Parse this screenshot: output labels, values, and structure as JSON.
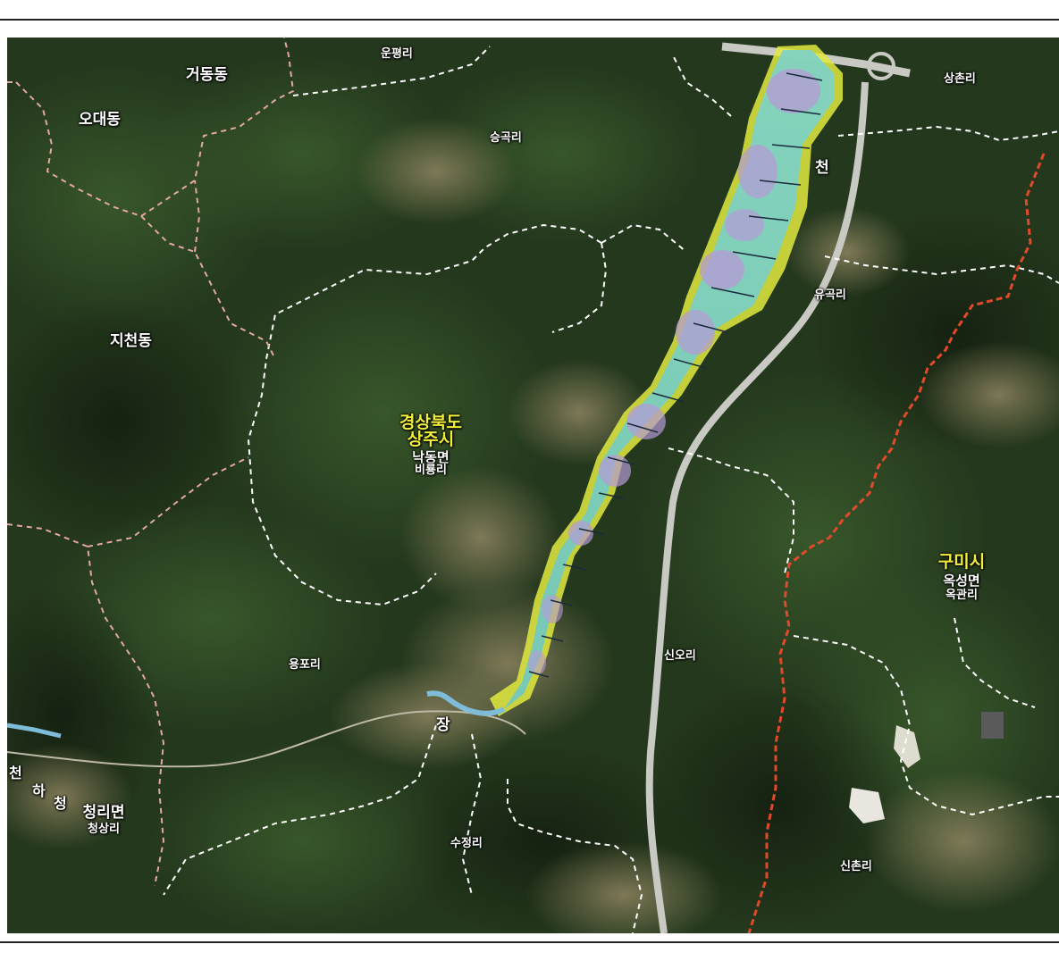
{
  "labels": {
    "geodong": "거동동",
    "odae": "오대동",
    "unpyeong": "운평리",
    "seunggok": "승곡리",
    "sangchon": "상촌리",
    "cheon_upper": "천",
    "yugok": "유곡리",
    "jicheon": "지천동",
    "yongpo": "용포리",
    "sino": "신오리",
    "jang": "장",
    "sujeong": "수정리",
    "sinchon": "신촌리",
    "cheongsang": "청상리"
  },
  "center": {
    "province": "경상북도",
    "city": "상주시",
    "township": "낙동면",
    "village": "비룡리"
  },
  "right_block": {
    "city": "구미시",
    "township": "옥성면",
    "village": "옥관리"
  },
  "left_block": {
    "township": "청리면",
    "village": "청상리"
  },
  "river_label_vertical": [
    "천",
    "하",
    "청"
  ],
  "colors": {
    "forest_dark": "#1f3219",
    "forest_mid": "#2f4a25",
    "farmland": "#7d7a55",
    "river_band": "#7fd3c8",
    "flood_violet": "#b79ad6",
    "flood_yellow": "#e1ea3e",
    "boundary_white": "#ffffff",
    "boundary_red": "#e04a2a",
    "label_yellow": "#f2ef3a"
  }
}
